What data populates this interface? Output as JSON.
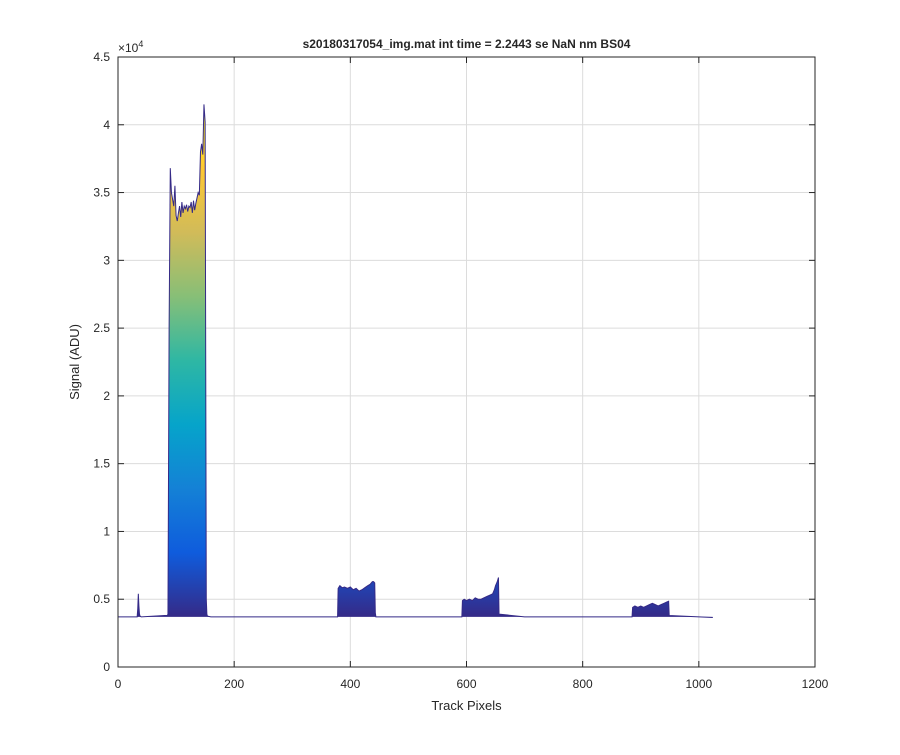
{
  "chart_data": {
    "type": "area",
    "title": "s20180317054_img.mat int time = 2.2443 se  NaN nm BS04",
    "xlabel": "Track Pixels",
    "ylabel": "Signal (ADU)",
    "xlim": [
      0,
      1200
    ],
    "ylim": [
      0,
      45000
    ],
    "xticks": [
      0,
      200,
      400,
      600,
      800,
      1000,
      1200
    ],
    "xtick_labels": [
      "0",
      "200",
      "400",
      "600",
      "800",
      "1000",
      "1200"
    ],
    "yticks": [
      0,
      5000,
      10000,
      15000,
      20000,
      25000,
      30000,
      35000,
      40000,
      45000
    ],
    "ytick_labels": [
      "0",
      "0.5",
      "1",
      "1.5",
      "2",
      "2.5",
      "3",
      "3.5",
      "4",
      "4.5"
    ],
    "y_exponent_label": "×10",
    "y_exponent_power": "4",
    "grid": true,
    "colormap": "parula",
    "colormap_colors": [
      "#352a87",
      "#0f5cdd",
      "#1481d6",
      "#06a4ca",
      "#2eb7a4",
      "#87bf77",
      "#d1bb59",
      "#fec832",
      "#f9fb0e"
    ],
    "baseline": 3700,
    "x_end": 1024,
    "series": [
      {
        "x": [
          0,
          33,
          34,
          35,
          36,
          37,
          38,
          40,
          80,
          85,
          86,
          88,
          90,
          92,
          94,
          96,
          98,
          100,
          102,
          104,
          106,
          108,
          110,
          112,
          114,
          116,
          118,
          120,
          122,
          124,
          126,
          128,
          130,
          132,
          134,
          136,
          138,
          140,
          142,
          144,
          146,
          148,
          150,
          152,
          153,
          154,
          160,
          300,
          378,
          379,
          382,
          386,
          390,
          395,
          400,
          405,
          410,
          415,
          420,
          425,
          430,
          434,
          436,
          438,
          440,
          442,
          443,
          444,
          500,
          592,
          593,
          596,
          600,
          605,
          610,
          615,
          620,
          625,
          630,
          635,
          640,
          645,
          648,
          650,
          652,
          653,
          655,
          656,
          700,
          885,
          886,
          890,
          895,
          900,
          905,
          910,
          915,
          920,
          925,
          930,
          935,
          940,
          945,
          948,
          949,
          1024
        ],
        "values": [
          3700,
          3700,
          4300,
          5400,
          4500,
          3900,
          3750,
          3700,
          3800,
          3800,
          3900,
          25000,
          36800,
          35000,
          34500,
          34000,
          35500,
          33300,
          32900,
          33500,
          34000,
          33200,
          34300,
          33500,
          34000,
          33800,
          34100,
          33600,
          34000,
          33900,
          34300,
          33500,
          34400,
          33700,
          34200,
          34600,
          35000,
          34800,
          38000,
          38600,
          37800,
          41500,
          40200,
          5000,
          3900,
          3750,
          3700,
          3700,
          3700,
          5800,
          6000,
          5850,
          5900,
          5800,
          5900,
          5700,
          5800,
          5600,
          5700,
          5850,
          6000,
          6100,
          6200,
          6300,
          6300,
          6200,
          4000,
          3700,
          3700,
          3700,
          4900,
          5000,
          4900,
          5000,
          4900,
          5100,
          5000,
          5000,
          5100,
          5200,
          5300,
          5400,
          5700,
          6000,
          6200,
          6300,
          6600,
          3900,
          3700,
          3700,
          4400,
          4500,
          4400,
          4500,
          4400,
          4500,
          4600,
          4700,
          4600,
          4500,
          4600,
          4700,
          4800,
          4850,
          3800,
          3650
        ]
      }
    ]
  }
}
